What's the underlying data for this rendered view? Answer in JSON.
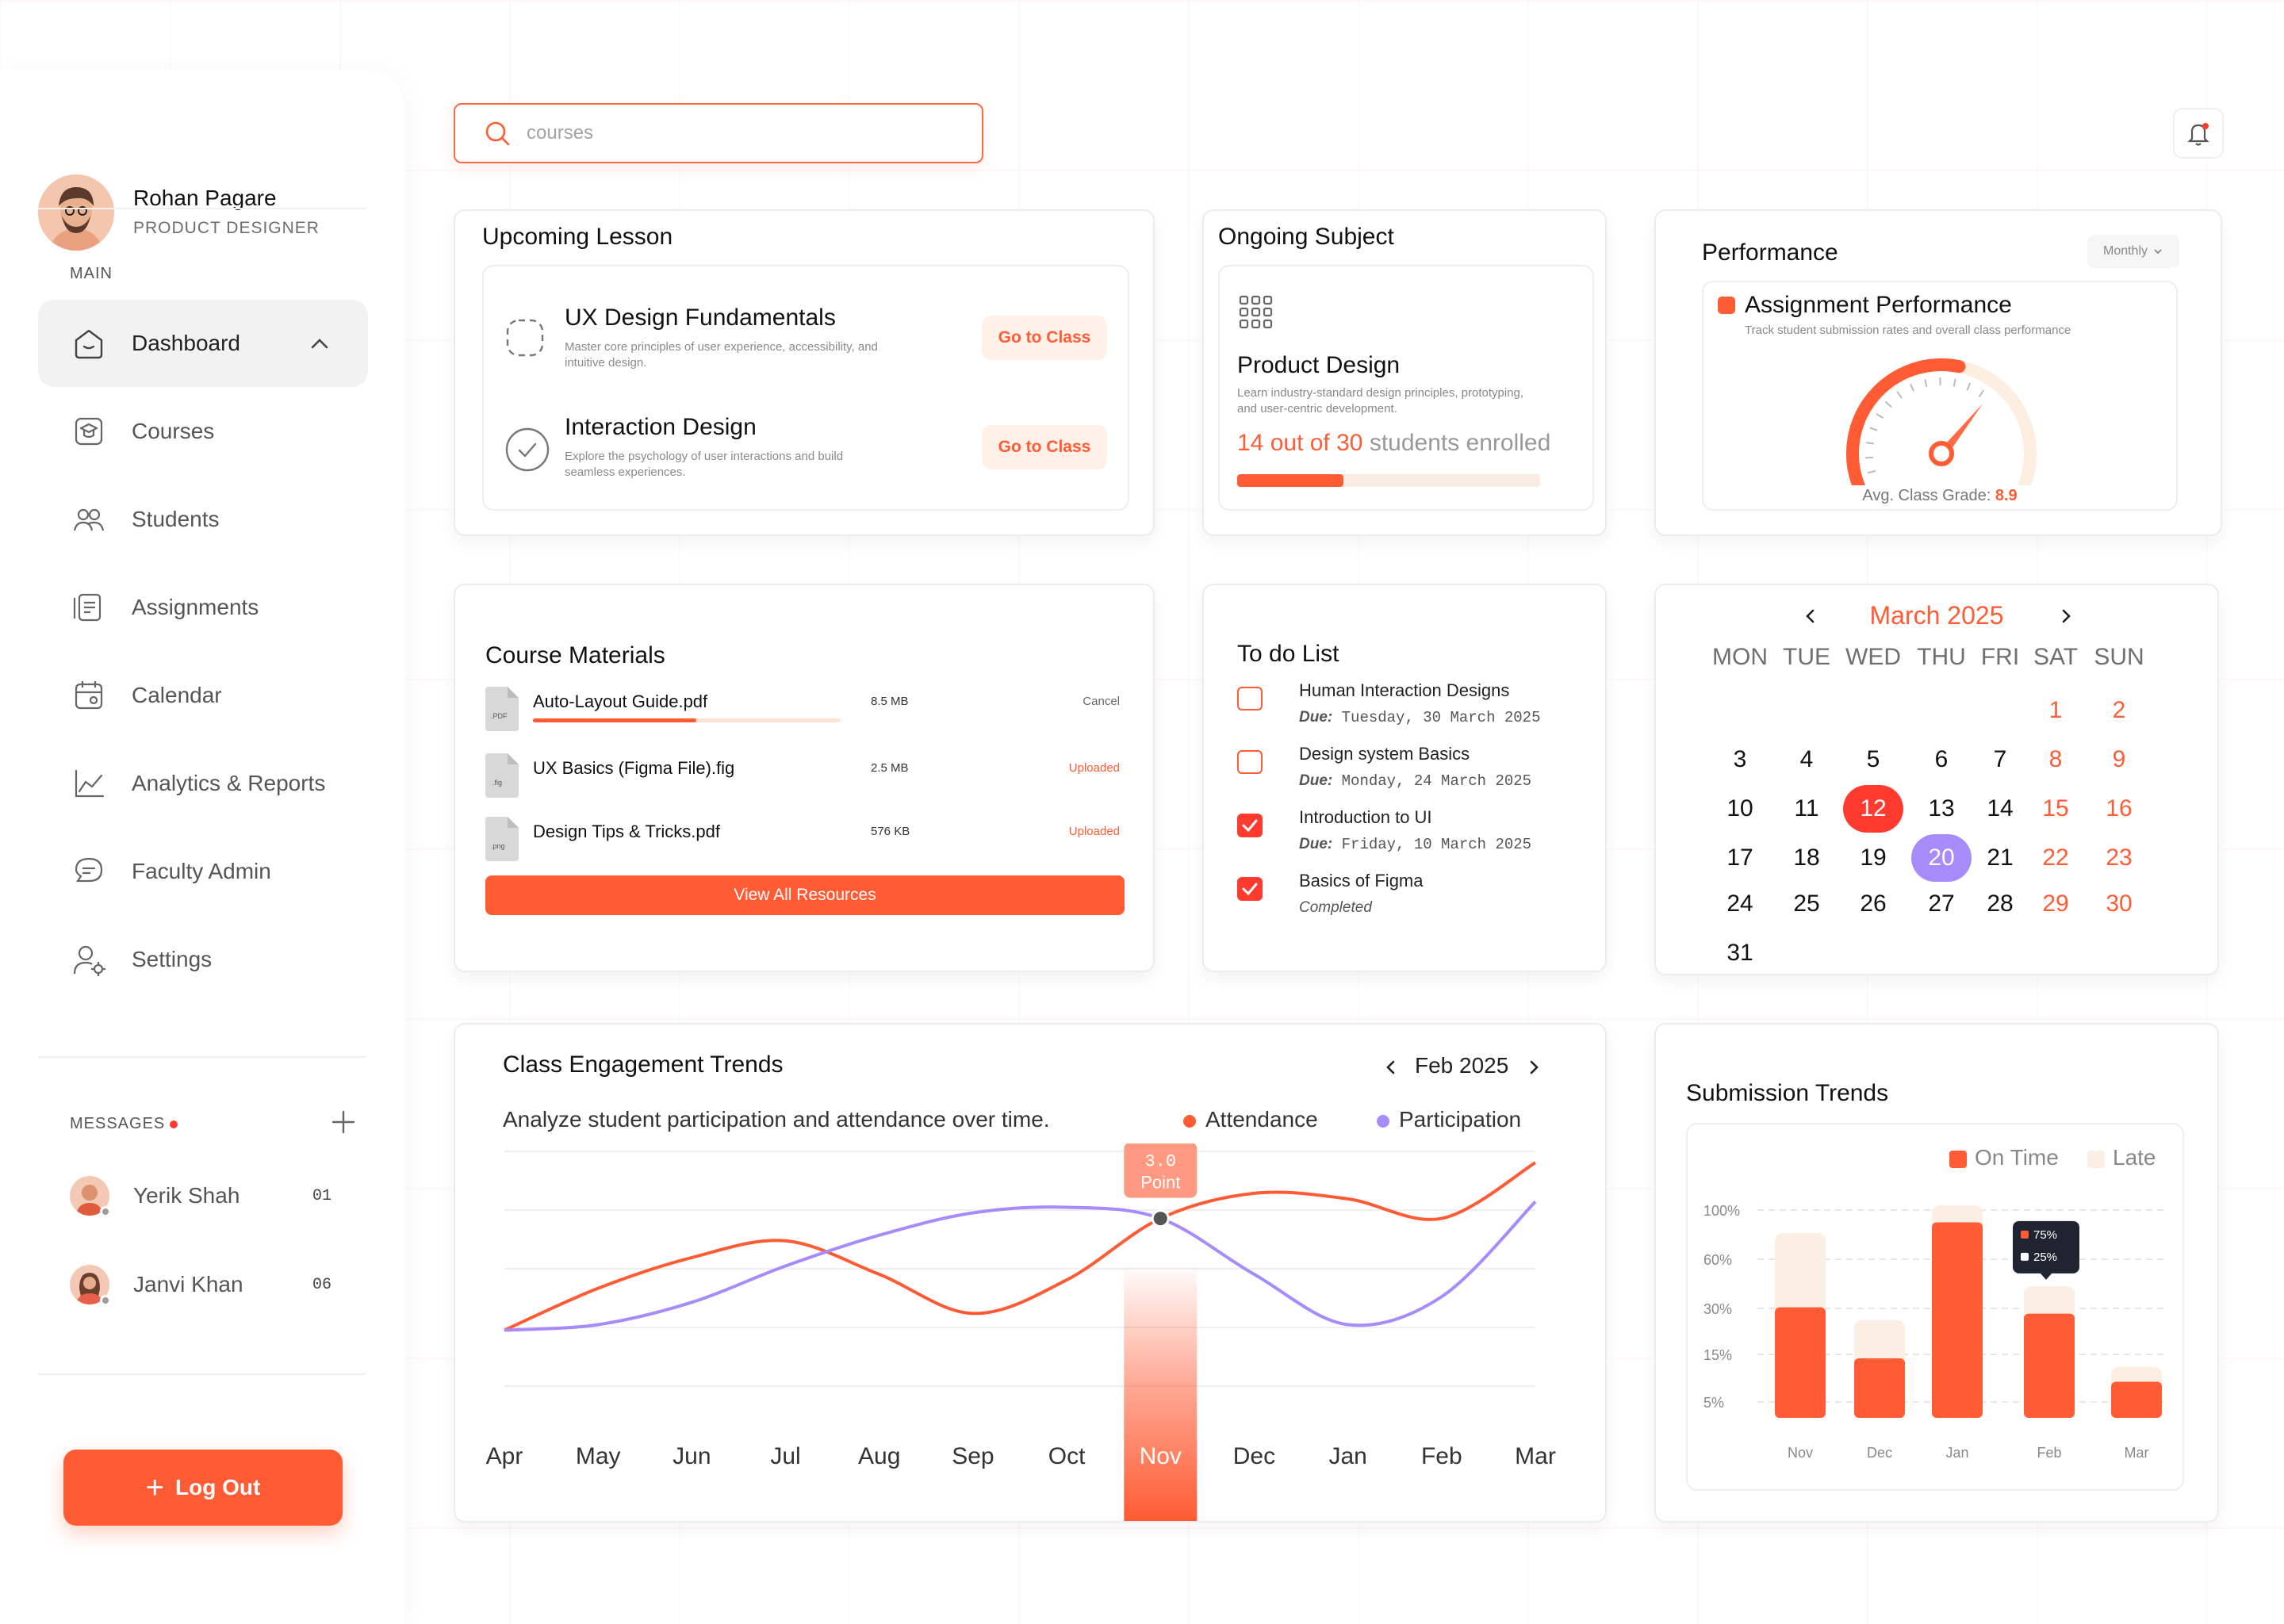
{
  "user": {
    "name": "Rohan Pagare",
    "role": "PRODUCT DESIGNER"
  },
  "sidebar": {
    "main_label": "MAIN",
    "items": [
      {
        "label": "Dashboard",
        "icon": "home-icon",
        "active": true
      },
      {
        "label": "Courses",
        "icon": "graduation-cap-icon"
      },
      {
        "label": "Students",
        "icon": "students-icon"
      },
      {
        "label": "Assignments",
        "icon": "assignments-icon"
      },
      {
        "label": "Calendar",
        "icon": "calendar-icon"
      },
      {
        "label": "Analytics & Reports",
        "icon": "chart-icon"
      },
      {
        "label": "Faculty Admin",
        "icon": "chat-icon"
      },
      {
        "label": "Settings",
        "icon": "user-settings-icon"
      }
    ],
    "messages_label": "MESSAGES",
    "messages": [
      {
        "name": "Yerik Shah",
        "count": "01"
      },
      {
        "name": "Janvi Khan",
        "count": "06"
      }
    ],
    "logout_label": "Log Out"
  },
  "search": {
    "placeholder": "courses"
  },
  "upcoming": {
    "title": "Upcoming Lesson",
    "lessons": [
      {
        "title": "UX Design Fundamentals",
        "desc": "Master core principles of user experience, accessibility, and intuitive design.",
        "button": "Go to Class"
      },
      {
        "title": "Interaction Design",
        "desc": "Explore the psychology of user interactions and build seamless experiences.",
        "button": "Go to Class"
      }
    ]
  },
  "ongoing": {
    "title": "Ongoing Subject",
    "subject": "Product Design",
    "desc": "Learn industry-standard design principles, prototyping, and user-centric development.",
    "enrolled_count": "14 out of 30",
    "enrolled_suffix": "students enrolled",
    "progress": 0.35
  },
  "performance": {
    "title": "Performance",
    "period": "Monthly",
    "subtitle": "Assignment Performance",
    "desc": "Track student submission rates and overall class performance",
    "grade_label": "Avg. Class Grade:",
    "grade_value": "8.9",
    "gauge_fraction": 0.89,
    "colors": {
      "accent": "#ff5b34",
      "track": "#fdeee2"
    }
  },
  "materials": {
    "title": "Course Materials",
    "files": [
      {
        "name": "Auto-Layout Guide.pdf",
        "ext": ".PDF",
        "size": "8.5 MB",
        "status": "Cancel",
        "progress": 0.53
      },
      {
        "name": "UX Basics (Figma File).fig",
        "ext": ".fig",
        "size": "2.5 MB",
        "status": "Uploaded"
      },
      {
        "name": "Design Tips & Tricks.pdf",
        "ext": ".png",
        "size": "576 KB",
        "status": "Uploaded"
      }
    ],
    "view_all": "View All Resources"
  },
  "todo": {
    "title": "To do List",
    "items": [
      {
        "title": "Human Interaction Designs",
        "due_label": "Due:",
        "due": "Tuesday, 30 March 2025",
        "checked": false
      },
      {
        "title": "Design system Basics",
        "due_label": "Due:",
        "due": "Monday, 24 March 2025",
        "checked": false
      },
      {
        "title": "Introduction to UI",
        "due_label": "Due:",
        "due": "Friday, 10 March 2025",
        "checked": true
      },
      {
        "title": "Basics of Figma",
        "due_label": "",
        "due": "Completed",
        "checked": true
      }
    ]
  },
  "calendar": {
    "month": "March 2025",
    "weekdays": [
      "MON",
      "TUE",
      "WED",
      "THU",
      "FRI",
      "SAT",
      "SUN"
    ],
    "rows": [
      [
        "",
        "",
        "",
        "",
        "",
        "1",
        "2"
      ],
      [
        "3",
        "4",
        "5",
        "6",
        "7",
        "8",
        "9"
      ],
      [
        "10",
        "11",
        "12",
        "13",
        "14",
        "15",
        "16"
      ],
      [
        "17",
        "18",
        "19",
        "20",
        "21",
        "22",
        "23"
      ],
      [
        "24",
        "25",
        "26",
        "27",
        "28",
        "29",
        "30"
      ],
      [
        "31",
        "",
        "",
        "",
        "",
        "",
        ""
      ]
    ],
    "today": "12",
    "selected": "20"
  },
  "engagement": {
    "title": "Class Engagement Trends",
    "desc": "Analyze student participation and attendance over time.",
    "month": "Feb 2025",
    "legend": [
      "Attendance",
      "Participation"
    ],
    "tooltip_value": "3.0",
    "tooltip_unit": "Point",
    "highlight": "Nov",
    "colors": {
      "attendance": "#ff5b34",
      "participation": "#a78bfa"
    }
  },
  "submission": {
    "title": "Submission Trends",
    "legend": [
      "On Time",
      "Late"
    ],
    "y_ticks": [
      "100%",
      "60%",
      "30%",
      "15%",
      "5%"
    ],
    "tooltip": [
      "75%",
      "25%"
    ],
    "colors": {
      "on_time": "#ff5b34",
      "late": "#fbeee2"
    }
  },
  "chart_data": [
    {
      "type": "line",
      "x": [
        "Apr",
        "May",
        "Jun",
        "Jul",
        "Aug",
        "Sep",
        "Oct",
        "Nov",
        "Dec",
        "Jan",
        "Feb",
        "Mar"
      ],
      "series": [
        {
          "name": "Attendance",
          "values": [
            1.0,
            1.75,
            2.3,
            2.6,
            2.0,
            1.3,
            1.9,
            3.0,
            3.45,
            3.35,
            3.0,
            4.0
          ]
        },
        {
          "name": "Participation",
          "values": [
            1.0,
            1.1,
            1.5,
            2.15,
            2.7,
            3.1,
            3.2,
            3.0,
            2.0,
            1.1,
            1.6,
            3.3
          ]
        }
      ],
      "ylim": [
        0,
        4.2
      ]
    },
    {
      "type": "bar",
      "categories": [
        "Nov",
        "Dec",
        "Jan",
        "Feb",
        "Mar"
      ],
      "series": [
        {
          "name": "On Time",
          "values": [
            52,
            28,
            92,
            49,
            17
          ]
        },
        {
          "name": "Late",
          "values": [
            35,
            18,
            8,
            13,
            7
          ]
        }
      ],
      "ylim": [
        0,
        100
      ]
    }
  ]
}
